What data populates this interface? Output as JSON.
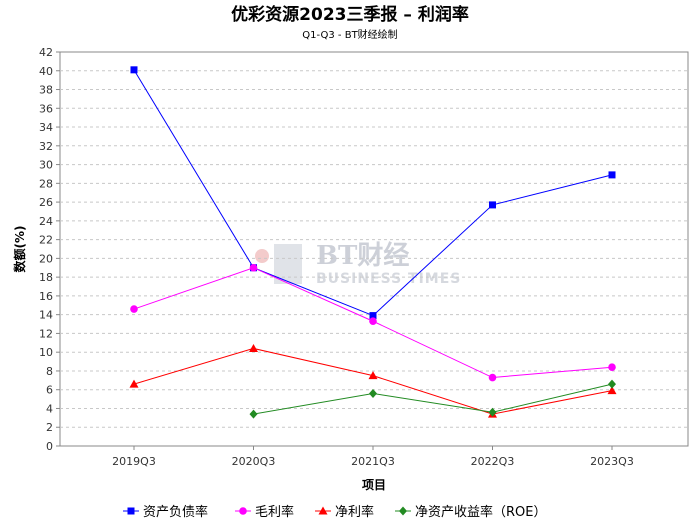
{
  "title": "优彩资源2023三季报 – 利润率",
  "subtitle": "Q1-Q3 - BT财经绘制",
  "watermark": {
    "main": "BT财经",
    "sub": "BUSINESS TIMES"
  },
  "chart_data": {
    "type": "line",
    "categories": [
      "2019Q3",
      "2020Q3",
      "2021Q3",
      "2022Q3",
      "2023Q3"
    ],
    "xlabel": "项目",
    "ylabel": "数额(%)",
    "ylim": [
      0,
      42
    ],
    "ytick_step": 2,
    "grid": true,
    "legend_position": "bottom",
    "series": [
      {
        "name": "资产负债率",
        "color": "#0000ff",
        "marker": "square",
        "values": [
          40.1,
          19.0,
          13.9,
          25.7,
          28.9
        ]
      },
      {
        "name": "毛利率",
        "color": "#ff00ff",
        "marker": "circle",
        "values": [
          14.6,
          19.0,
          13.3,
          7.3,
          8.4
        ]
      },
      {
        "name": "净利率",
        "color": "#ff0000",
        "marker": "triangle",
        "values": [
          6.6,
          10.4,
          7.5,
          3.4,
          5.9
        ]
      },
      {
        "name": "净资产收益率（ROE）",
        "color": "#228b22",
        "marker": "diamond",
        "values": [
          null,
          3.4,
          5.6,
          3.6,
          6.6
        ]
      }
    ]
  }
}
